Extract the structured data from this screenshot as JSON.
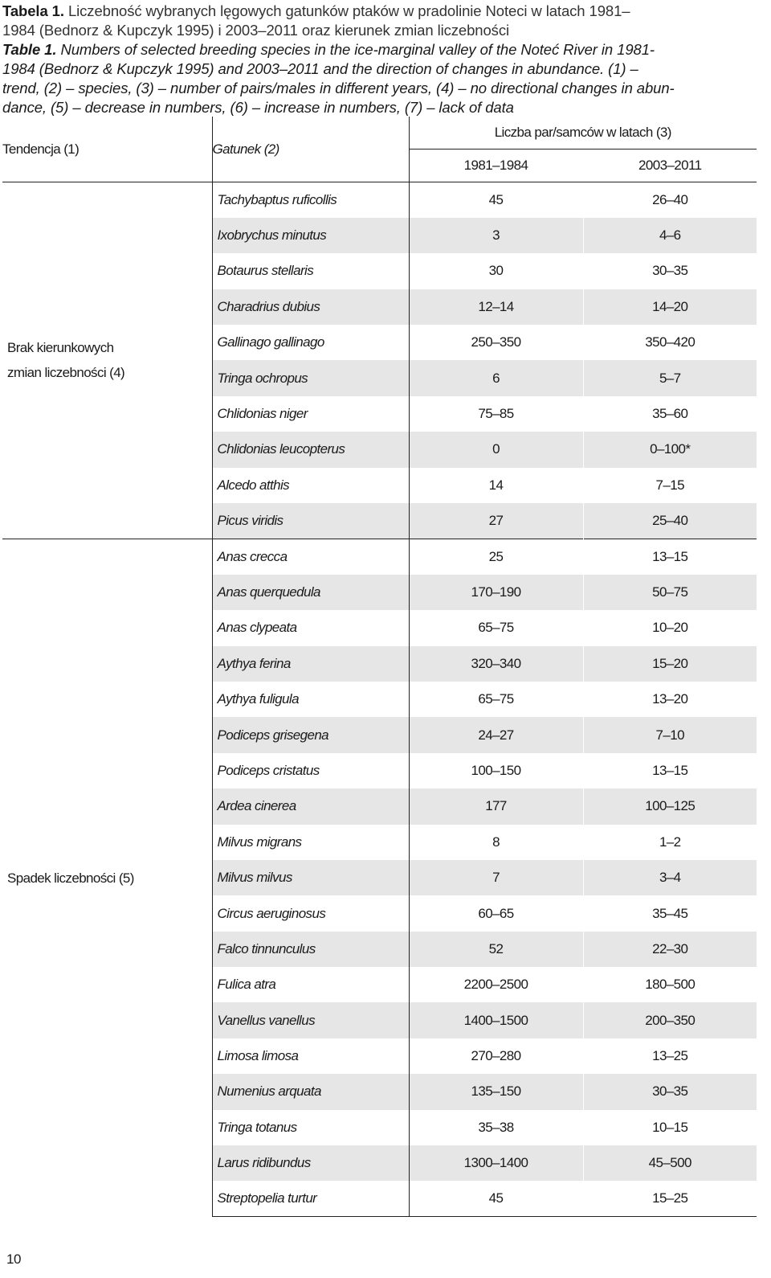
{
  "caption": {
    "pl_label": "Tabela 1.",
    "pl_text_line1": " Liczebność wybranych lęgowych gatunków ptaków w pradolinie Noteci w latach 1981–",
    "pl_text_line2": "1984 (Bednorz & Kupczyk 1995) i 2003–2011 oraz kierunek zmian liczebności",
    "en_label": "Table 1.",
    "en_text_line1": " Numbers of selected breeding species in the ice-marginal valley of the Noteć River in 1981-",
    "en_text_line2": "1984 (Bednorz & Kupczyk 1995) and 2003–2011 and the direction of changes in abundance. (1) –",
    "en_text_line3": "trend, (2) – species, (3) – number of pairs/males in different years, (4) – no directional changes in abun-",
    "en_text_line4": "dance, (5) – decrease in numbers, (6) – increase in numbers, (7) – lack of data"
  },
  "table": {
    "header": {
      "trend": "Tendencja (1)",
      "species": "Gatunek (2)",
      "count": "Liczba par/samców w latach (3)",
      "year1": "1981–1984",
      "year2": "2003–2011"
    },
    "groups": [
      {
        "label_line1": "Brak kierunkowych",
        "label_line2": "zmian liczebności (4)",
        "rows": [
          {
            "species": "Tachybaptus ruficollis",
            "v1": "45",
            "v2": "26–40"
          },
          {
            "species": "Ixobrychus minutus",
            "v1": "3",
            "v2": "4–6"
          },
          {
            "species": "Botaurus stellaris",
            "v1": "30",
            "v2": "30–35"
          },
          {
            "species": "Charadrius dubius",
            "v1": "12–14",
            "v2": "14–20"
          },
          {
            "species": "Gallinago gallinago",
            "v1": "250–350",
            "v2": "350–420"
          },
          {
            "species": "Tringa ochropus",
            "v1": "6",
            "v2": "5–7"
          },
          {
            "species": "Chlidonias niger",
            "v1": "75–85",
            "v2": "35–60"
          },
          {
            "species": "Chlidonias leucopterus",
            "v1": "0",
            "v2": "0–100*"
          },
          {
            "species": "Alcedo atthis",
            "v1": "14",
            "v2": "7–15"
          },
          {
            "species": "Picus viridis",
            "v1": "27",
            "v2": "25–40"
          }
        ]
      },
      {
        "label_line1": "Spadek liczebności (5)",
        "label_line2": "",
        "rows": [
          {
            "species": "Anas crecca",
            "v1": "25",
            "v2": "13–15"
          },
          {
            "species": "Anas querquedula",
            "v1": "170–190",
            "v2": "50–75"
          },
          {
            "species": "Anas clypeata",
            "v1": "65–75",
            "v2": "10–20"
          },
          {
            "species": "Aythya ferina",
            "v1": "320–340",
            "v2": "15–20"
          },
          {
            "species": "Aythya fuligula",
            "v1": "65–75",
            "v2": "13–20"
          },
          {
            "species": "Podiceps grisegena",
            "v1": "24–27",
            "v2": "7–10"
          },
          {
            "species": "Podiceps cristatus",
            "v1": "100–150",
            "v2": "13–15"
          },
          {
            "species": "Ardea cinerea",
            "v1": "177",
            "v2": "100–125"
          },
          {
            "species": "Milvus migrans",
            "v1": "8",
            "v2": "1–2"
          },
          {
            "species": "Milvus milvus",
            "v1": "7",
            "v2": "3–4"
          },
          {
            "species": "Circus aeruginosus",
            "v1": "60–65",
            "v2": "35–45"
          },
          {
            "species": "Falco tinnunculus",
            "v1": "52",
            "v2": "22–30"
          },
          {
            "species": "Fulica atra",
            "v1": "2200–2500",
            "v2": "180–500"
          },
          {
            "species": "Vanellus vanellus",
            "v1": "1400–1500",
            "v2": "200–350"
          },
          {
            "species": "Limosa limosa",
            "v1": "270–280",
            "v2": "13–25"
          },
          {
            "species": "Numenius arquata",
            "v1": "135–150",
            "v2": "30–35"
          },
          {
            "species": "Tringa totanus",
            "v1": "35–38",
            "v2": "10–15"
          },
          {
            "species": "Larus ridibundus",
            "v1": "1300–1400",
            "v2": "45–500"
          },
          {
            "species": "Streptopelia turtur",
            "v1": "45",
            "v2": "15–25"
          }
        ]
      }
    ]
  },
  "page_number": "10"
}
